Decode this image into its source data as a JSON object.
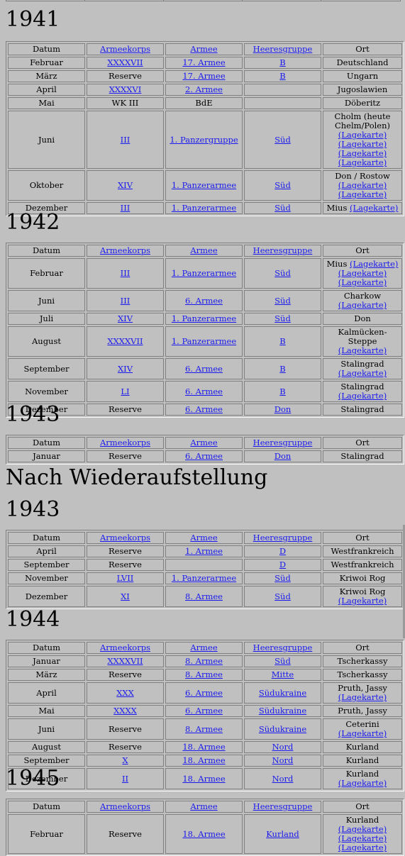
{
  "headers": [
    "Datum",
    "Armeekorps",
    "Armee",
    "Heeresgruppe",
    "Ort"
  ],
  "header_links": [
    false,
    true,
    true,
    true,
    false
  ],
  "lage": "(Lagekarte)",
  "section_title": "Nach Wiederaufstellung",
  "blocks": [
    {
      "year": "1941",
      "rows": [
        {
          "d": "Februar",
          "k": "XXXXVII",
          "kl": true,
          "a": "17. Armee",
          "al": true,
          "h": "B",
          "hl": true,
          "o": "Deutschland",
          "lk": 0
        },
        {
          "d": "März",
          "k": "Reserve",
          "kl": false,
          "a": "17. Armee",
          "al": true,
          "h": "B",
          "hl": true,
          "o": "Ungarn",
          "lk": 0
        },
        {
          "d": "April",
          "k": "XXXXVI",
          "kl": true,
          "a": "2. Armee",
          "al": true,
          "h": "",
          "hl": false,
          "o": "Jugoslawien",
          "lk": 0
        },
        {
          "d": "Mai",
          "k": "WK III",
          "kl": false,
          "a": "BdE",
          "al": false,
          "h": "",
          "hl": false,
          "o": "Döberitz",
          "lk": 0
        },
        {
          "d": "Juni",
          "k": "III",
          "kl": true,
          "a": "1. Panzergruppe",
          "al": true,
          "h": "Süd",
          "hl": true,
          "o": "Cholm (heute Chelm/Polen)",
          "lk": 4,
          "br": true
        },
        {
          "d": "Oktober",
          "k": "XIV",
          "kl": true,
          "a": "1. Panzerarmee",
          "al": true,
          "h": "Süd",
          "hl": true,
          "o": "Don / Rostow",
          "lk": 2,
          "br": true
        },
        {
          "d": "Dezember",
          "k": "III",
          "kl": true,
          "a": "1. Panzerarmee",
          "al": true,
          "h": "Süd",
          "hl": true,
          "o": "Mius",
          "lk": 1,
          "br": false
        }
      ]
    },
    {
      "year": "1942",
      "rows": [
        {
          "d": "Februar",
          "k": "III",
          "kl": true,
          "a": "1. Panzerarmee",
          "al": true,
          "h": "Süd",
          "hl": true,
          "o": "Mius",
          "lk": 3,
          "br": false
        },
        {
          "d": "Juni",
          "k": "III",
          "kl": true,
          "a": "6. Armee",
          "al": true,
          "h": "Süd",
          "hl": true,
          "o": "Charkow",
          "lk": 1,
          "br": true
        },
        {
          "d": "Juli",
          "k": "XIV",
          "kl": true,
          "a": "1. Panzerarmee",
          "al": true,
          "h": "Süd",
          "hl": true,
          "o": "Don",
          "lk": 0
        },
        {
          "d": "August",
          "k": "XXXXVII",
          "kl": true,
          "a": "1. Panzerarmee",
          "al": true,
          "h": "B",
          "hl": true,
          "o": "Kalmücken-Steppe",
          "lk": 1,
          "br": true
        },
        {
          "d": "September",
          "k": "XIV",
          "kl": true,
          "a": "6. Armee",
          "al": true,
          "h": "B",
          "hl": true,
          "o": "Stalingrad",
          "lk": 1,
          "br": true
        },
        {
          "d": "November",
          "k": "LI",
          "kl": true,
          "a": "6. Armee",
          "al": true,
          "h": "B",
          "hl": true,
          "o": "Stalingrad",
          "lk": 1,
          "br": true
        },
        {
          "d": "Dezember",
          "k": "Reserve",
          "kl": false,
          "a": "6. Armee",
          "al": true,
          "h": "Don",
          "hl": true,
          "o": "Stalingrad",
          "lk": 0
        }
      ]
    },
    {
      "year": "1943",
      "rows": [
        {
          "d": "Januar",
          "k": "Reserve",
          "kl": false,
          "a": "6. Armee",
          "al": true,
          "h": "Don",
          "hl": true,
          "o": "Stalingrad",
          "lk": 0
        }
      ]
    },
    {
      "year": "1943",
      "rows": [
        {
          "d": "April",
          "k": "Reserve",
          "kl": false,
          "a": "1. Armee",
          "al": true,
          "h": "D",
          "hl": true,
          "o": "Westfrankreich",
          "lk": 0
        },
        {
          "d": "September",
          "k": "Reserve",
          "kl": false,
          "a": "",
          "al": false,
          "h": "D",
          "hl": true,
          "o": "Westfrankreich",
          "lk": 0
        },
        {
          "d": "November",
          "k": "LVII",
          "kl": true,
          "a": "1. Panzerarmee",
          "al": true,
          "h": "Süd",
          "hl": true,
          "o": "Kriwoi Rog",
          "lk": 0
        },
        {
          "d": "Dezember",
          "k": "XI",
          "kl": true,
          "a": "8. Armee",
          "al": true,
          "h": "Süd",
          "hl": true,
          "o": "Kriwoi Rog",
          "lk": 1,
          "br": true
        }
      ]
    },
    {
      "year": "1944",
      "rows": [
        {
          "d": "Januar",
          "k": "XXXXVII",
          "kl": true,
          "a": "8. Armee",
          "al": true,
          "h": "Süd",
          "hl": true,
          "o": "Tscherkassy",
          "lk": 0
        },
        {
          "d": "März",
          "k": "Reserve",
          "kl": false,
          "a": "8. Armee",
          "al": true,
          "h": "Mitte",
          "hl": true,
          "o": "Tscherkassy",
          "lk": 0
        },
        {
          "d": "April",
          "k": "XXX",
          "kl": true,
          "a": "6. Armee",
          "al": true,
          "h": "Südukraine",
          "hl": true,
          "o": "Pruth, Jassy",
          "lk": 1,
          "br": true
        },
        {
          "d": "Mai",
          "k": "XXXX",
          "kl": true,
          "a": "6. Armee",
          "al": true,
          "h": "Südukraine",
          "hl": true,
          "o": "Pruth, Jassy",
          "lk": 0
        },
        {
          "d": "Juni",
          "k": "Reserve",
          "kl": false,
          "a": "8. Armee",
          "al": true,
          "h": "Südukraine",
          "hl": true,
          "o": "Ceterini",
          "lk": 1,
          "br": false
        },
        {
          "d": "August",
          "k": "Reserve",
          "kl": false,
          "a": "18. Armee",
          "al": true,
          "h": "Nord",
          "hl": true,
          "o": "Kurland",
          "lk": 0
        },
        {
          "d": "September",
          "k": "X",
          "kl": true,
          "a": "18. Armee",
          "al": true,
          "h": "Nord",
          "hl": true,
          "o": "Kurland",
          "lk": 0
        },
        {
          "d": "Dezember",
          "k": "II",
          "kl": true,
          "a": "18. Armee",
          "al": true,
          "h": "Nord",
          "hl": true,
          "o": "Kurland",
          "lk": 1,
          "br": false
        }
      ]
    },
    {
      "year": "1945",
      "rows": [
        {
          "d": "Februar",
          "k": "Reserve",
          "kl": false,
          "a": "18. Armee",
          "al": true,
          "h": "Kurland",
          "hl": true,
          "o": "Kurland",
          "lk": 3,
          "br": false
        }
      ]
    }
  ]
}
